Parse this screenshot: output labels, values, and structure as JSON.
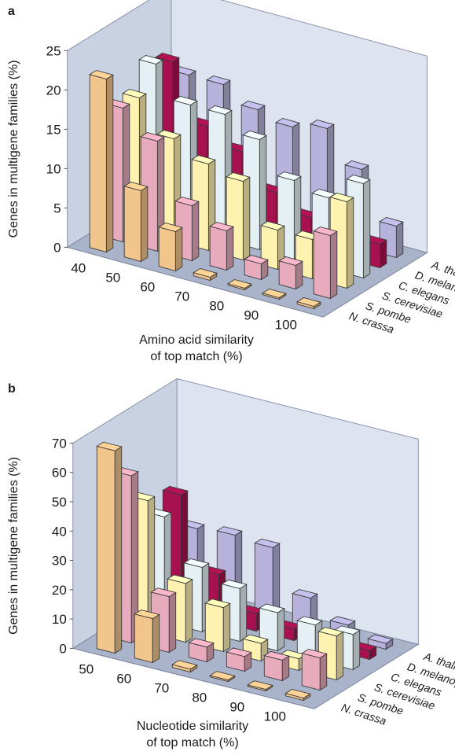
{
  "chart_data": [
    {
      "panel": "a",
      "type": "bar",
      "subtype": "3d-grouped-bar",
      "categories": [
        "40",
        "50",
        "60",
        "70",
        "80",
        "90",
        "100"
      ],
      "xlabel_line1": "Amino acid similarity",
      "xlabel_line2": "of top match (%)",
      "ylabel": "Genes in multigene families (%)",
      "ylim": [
        0,
        25
      ],
      "yticks": [
        "0",
        "5",
        "10",
        "15",
        "20",
        "25"
      ],
      "series": [
        {
          "name": "N. crassa",
          "color": "#f1c58c",
          "values": [
            22,
            9,
            5,
            0.4,
            0.2,
            0.2,
            0.3
          ]
        },
        {
          "name": "S. pombe",
          "color": "#e8aabd",
          "values": [
            17,
            14,
            7,
            5,
            2,
            3,
            8
          ]
        },
        {
          "name": "S. cerevisiae",
          "color": "#fff2b0",
          "values": [
            17,
            13,
            11,
            10,
            5,
            5,
            11
          ]
        },
        {
          "name": "C. elegans",
          "color": "#e4f0f4",
          "values": [
            20,
            16,
            16,
            14,
            10,
            9,
            12
          ]
        },
        {
          "name": "D. melanogaster",
          "color": "#a8114f",
          "values": [
            19,
            12,
            10,
            6,
            4,
            2,
            3
          ]
        },
        {
          "name": "A. thaliana",
          "color": "#b6b2dc",
          "values": [
            16,
            16,
            14,
            13,
            14,
            10,
            4
          ]
        }
      ],
      "grid": false,
      "legend": "series labels along right depth axis"
    },
    {
      "panel": "b",
      "type": "bar",
      "subtype": "3d-grouped-bar",
      "categories": [
        "50",
        "60",
        "70",
        "80",
        "90",
        "100"
      ],
      "xlabel_line1": "Nucleotide similarity",
      "xlabel_line2": "of top match (%)",
      "ylabel": "Genes in multigene families (%)",
      "ylim": [
        0,
        70
      ],
      "yticks": [
        "0",
        "10",
        "20",
        "30",
        "40",
        "50",
        "60",
        "70"
      ],
      "series": [
        {
          "name": "N. crassa",
          "color": "#f1c58c",
          "values": [
            69,
            15,
            1,
            0.5,
            0.5,
            0.8
          ]
        },
        {
          "name": "S. pombe",
          "color": "#e8aabd",
          "values": [
            57,
            19,
            5,
            5,
            7,
            11
          ]
        },
        {
          "name": "S. cerevisiae",
          "color": "#fff2b0",
          "values": [
            45,
            20,
            15,
            6,
            4,
            15
          ]
        },
        {
          "name": "C. elegans",
          "color": "#e4f0f4",
          "values": [
            36,
            22,
            18,
            13,
            12,
            12
          ]
        },
        {
          "name": "D. melanogaster",
          "color": "#a8114f",
          "values": [
            40,
            16,
            6,
            4,
            2,
            3
          ]
        },
        {
          "name": "A. thaliana",
          "color": "#b6b2dc",
          "values": [
            25,
            26,
            25,
            11,
            5,
            2
          ]
        }
      ],
      "grid": false,
      "legend": "series labels along right depth axis"
    }
  ],
  "panels": {
    "a": {
      "letter": "a",
      "xlabel_line1": "Amino acid similarity",
      "xlabel_line2": "of top match (%)"
    },
    "b": {
      "letter": "b",
      "xlabel_line1": "Nucleotide similarity",
      "xlabel_line2": "of top match (%)"
    }
  },
  "ylabel": "Genes in multigene families (%)"
}
